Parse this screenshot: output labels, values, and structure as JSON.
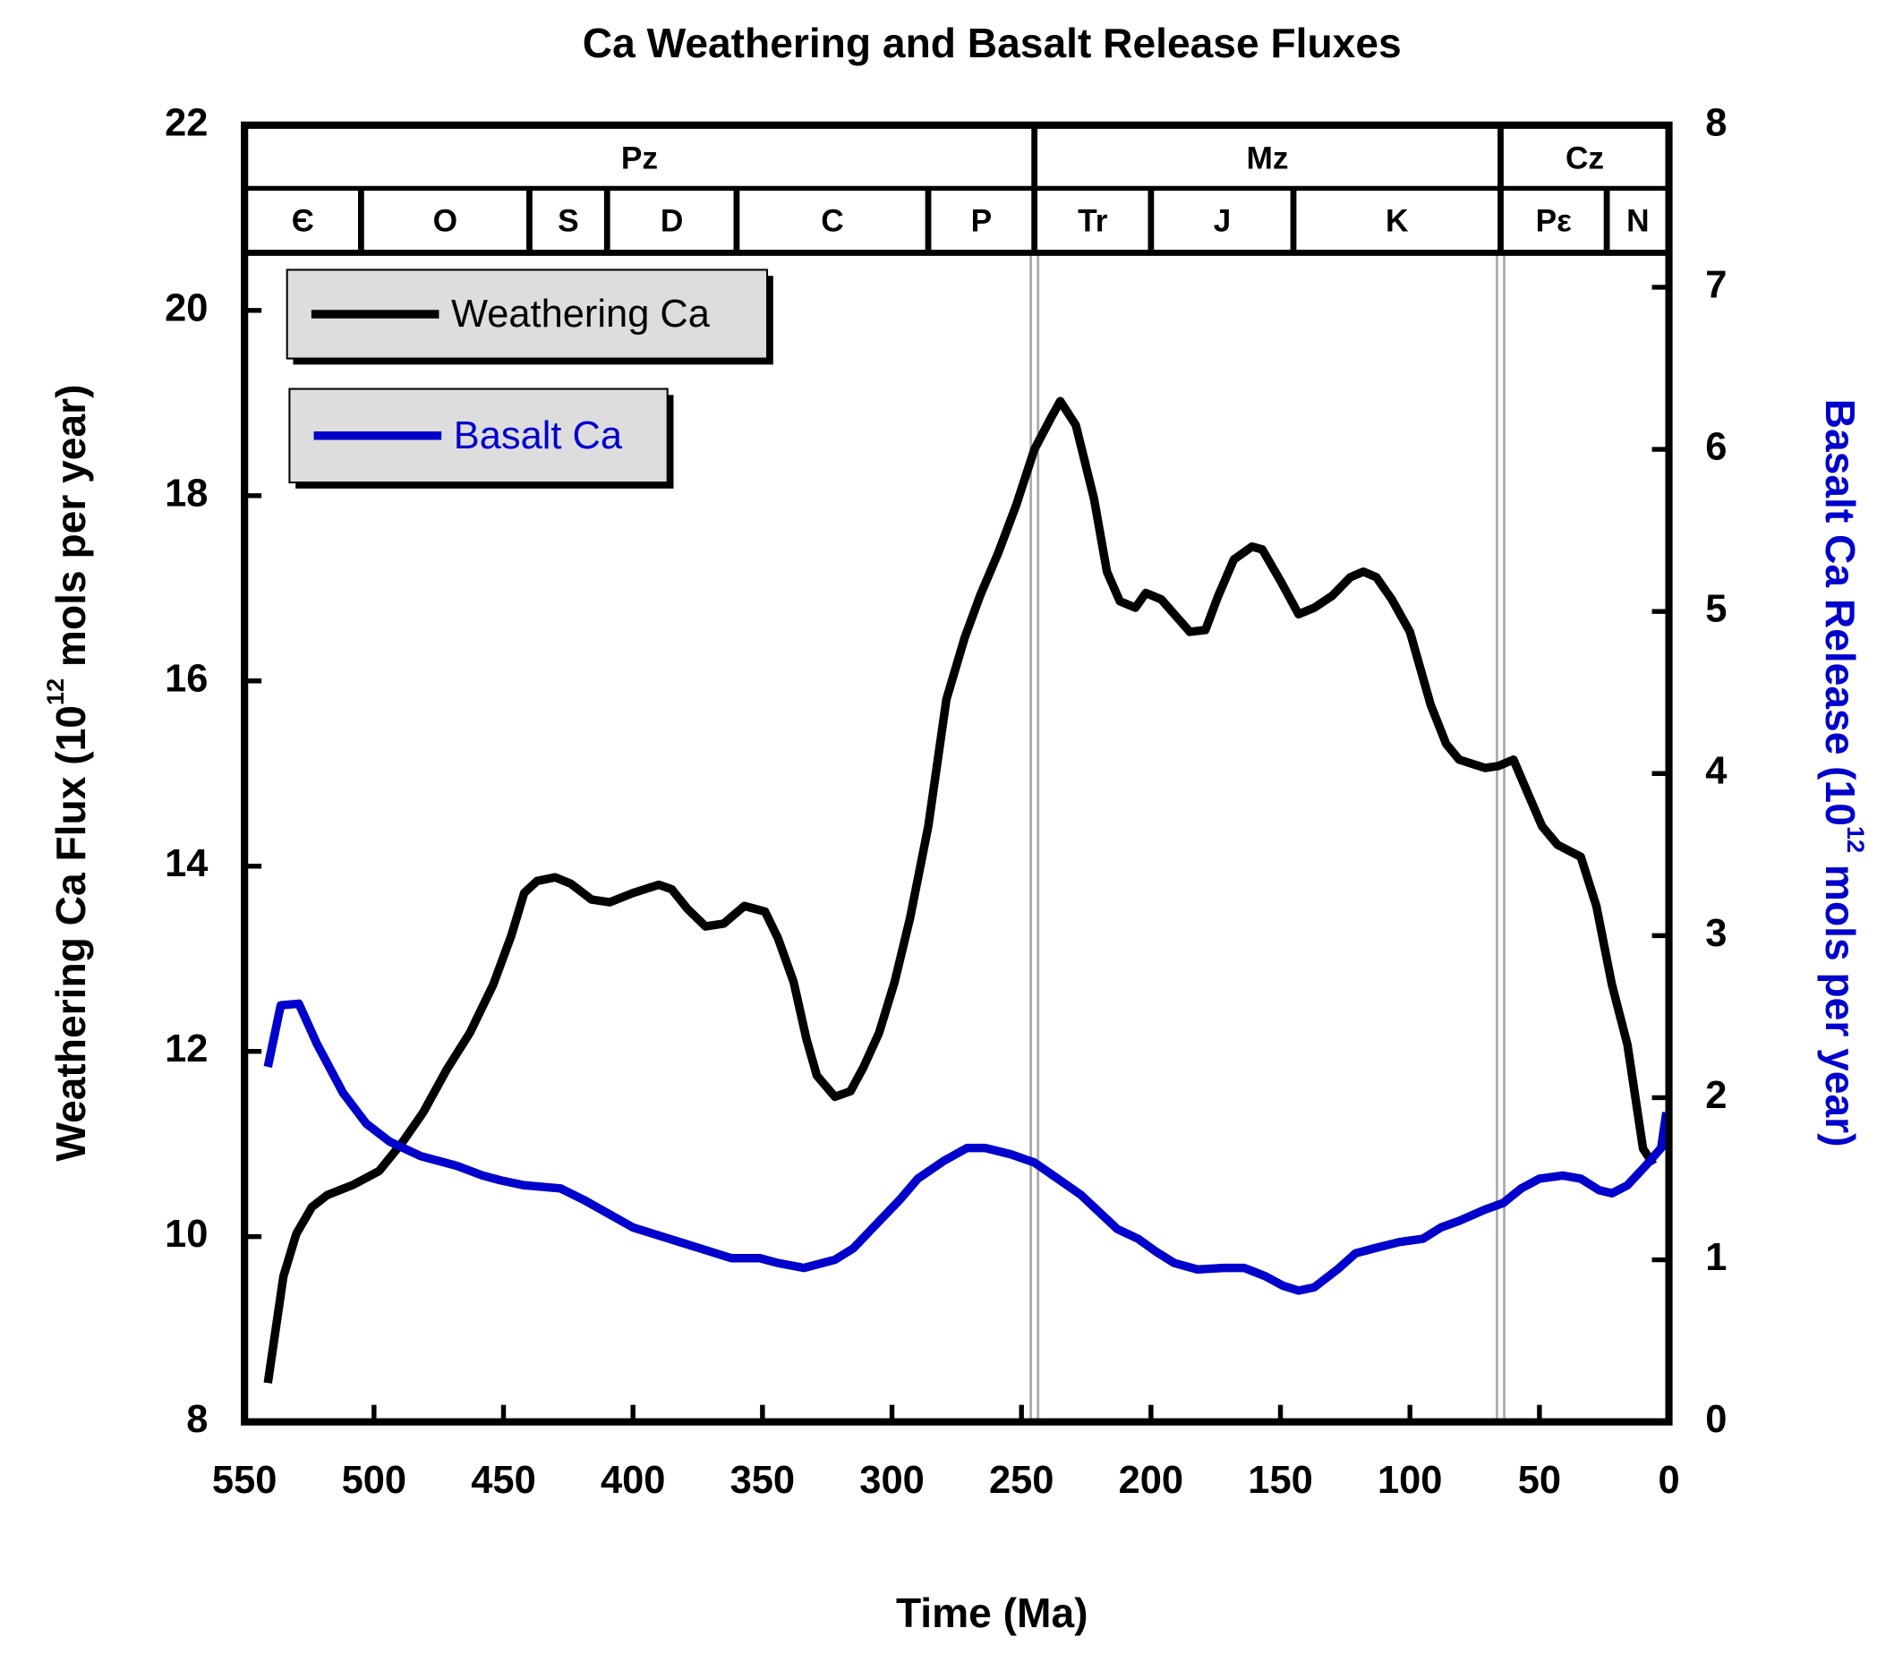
{
  "chart_data": {
    "type": "line",
    "title": "Ca Weathering and Basalt Release Fluxes",
    "xlabel": "Time (Ma)",
    "ylabel": [
      "Weathering Ca Flux (10",
      "12",
      " mols per year)"
    ],
    "y2label": [
      "Basalt Ca Release (10",
      "12",
      " mols per year)"
    ],
    "xlim": [
      550,
      0
    ],
    "xticks": [
      550,
      500,
      450,
      400,
      350,
      300,
      250,
      200,
      150,
      100,
      50,
      0
    ],
    "ylim": [
      8,
      22
    ],
    "yticks": [
      8,
      10,
      12,
      14,
      16,
      18,
      20,
      22
    ],
    "y2lim": [
      0,
      8
    ],
    "y2ticks": [
      0,
      1,
      2,
      3,
      4,
      5,
      6,
      7,
      8
    ],
    "legend": "upper left",
    "eras": [
      {
        "label": "Pz",
        "start": 550,
        "end": 245
      },
      {
        "label": "Mz",
        "start": 245,
        "end": 65
      },
      {
        "label": "Cz",
        "start": 65,
        "end": 0
      }
    ],
    "periods": [
      {
        "label": "Є",
        "start": 550,
        "end": 505
      },
      {
        "label": "O",
        "start": 505,
        "end": 440
      },
      {
        "label": "S",
        "start": 440,
        "end": 410
      },
      {
        "label": "D",
        "start": 410,
        "end": 360
      },
      {
        "label": "C",
        "start": 360,
        "end": 286
      },
      {
        "label": "P",
        "start": 286,
        "end": 245
      },
      {
        "label": "Tr",
        "start": 245,
        "end": 200
      },
      {
        "label": "J",
        "start": 200,
        "end": 145
      },
      {
        "label": "K",
        "start": 145,
        "end": 65
      },
      {
        "label": "Pε",
        "start": 65,
        "end": 24
      },
      {
        "label": "N",
        "start": 24,
        "end": 0
      }
    ],
    "series": [
      {
        "name": "Weathering Ca",
        "color": "#000000",
        "x": [
          541,
          535,
          530,
          524,
          518,
          508,
          498,
          489,
          481,
          472,
          463,
          454,
          447,
          442,
          437,
          430,
          424,
          416,
          409,
          400,
          390,
          385,
          379,
          372,
          365,
          357,
          349,
          344,
          338,
          333,
          329,
          322,
          316,
          311,
          305,
          299,
          293,
          286,
          279,
          272,
          266,
          259,
          252,
          245,
          239,
          235,
          229,
          222,
          217,
          212,
          206,
          202,
          196,
          191,
          185,
          179,
          174,
          168,
          161,
          157,
          150,
          143,
          137,
          130,
          123,
          118,
          113,
          107,
          100,
          92,
          86,
          81,
          71,
          66,
          60,
          55,
          49,
          43,
          34,
          28,
          22,
          16,
          10,
          6
        ],
        "values": [
          8.42,
          9.57,
          10.03,
          10.32,
          10.45,
          10.56,
          10.71,
          11.02,
          11.34,
          11.8,
          12.2,
          12.72,
          13.25,
          13.71,
          13.84,
          13.88,
          13.81,
          13.64,
          13.61,
          13.71,
          13.8,
          13.75,
          13.54,
          13.35,
          13.38,
          13.57,
          13.51,
          13.22,
          12.75,
          12.13,
          11.74,
          11.51,
          11.57,
          11.83,
          12.2,
          12.75,
          13.44,
          14.43,
          15.8,
          16.46,
          16.92,
          17.38,
          17.9,
          18.5,
          18.82,
          19.02,
          18.76,
          17.97,
          17.18,
          16.86,
          16.79,
          16.95,
          16.88,
          16.72,
          16.53,
          16.55,
          16.92,
          17.31,
          17.45,
          17.42,
          17.08,
          16.72,
          16.79,
          16.92,
          17.12,
          17.18,
          17.12,
          16.88,
          16.53,
          15.74,
          15.32,
          15.15,
          15.06,
          15.08,
          15.15,
          14.82,
          14.43,
          14.23,
          14.1,
          13.57,
          12.72,
          12.07,
          10.95,
          10.78
        ]
      },
      {
        "name": "Basalt Ca",
        "color": "#0000cc",
        "axis": "y2",
        "x": [
          541,
          536,
          529,
          522,
          512,
          503,
          494,
          482,
          468,
          458,
          451,
          442,
          428,
          419,
          409,
          400,
          388,
          374,
          362,
          351,
          344,
          334,
          322,
          315,
          306,
          297,
          290,
          280,
          271,
          264,
          254,
          245,
          236,
          227,
          219,
          213,
          205,
          198,
          191,
          182,
          172,
          164,
          156,
          149,
          143,
          137,
          128,
          121,
          114,
          104,
          95,
          88,
          81,
          71,
          64,
          57,
          50,
          41,
          34,
          27,
          22,
          16,
          9,
          3,
          1
        ],
        "values": [
          2.19,
          2.57,
          2.58,
          2.33,
          2.03,
          1.84,
          1.73,
          1.64,
          1.58,
          1.52,
          1.49,
          1.46,
          1.44,
          1.37,
          1.28,
          1.2,
          1.14,
          1.07,
          1.01,
          1.01,
          0.98,
          0.95,
          1.0,
          1.07,
          1.22,
          1.37,
          1.5,
          1.61,
          1.69,
          1.69,
          1.65,
          1.6,
          1.5,
          1.4,
          1.28,
          1.19,
          1.13,
          1.05,
          0.98,
          0.94,
          0.95,
          0.95,
          0.9,
          0.84,
          0.81,
          0.83,
          0.94,
          1.04,
          1.07,
          1.11,
          1.13,
          1.2,
          1.24,
          1.31,
          1.35,
          1.44,
          1.5,
          1.52,
          1.5,
          1.43,
          1.41,
          1.46,
          1.58,
          1.69,
          1.91
        ]
      }
    ]
  }
}
